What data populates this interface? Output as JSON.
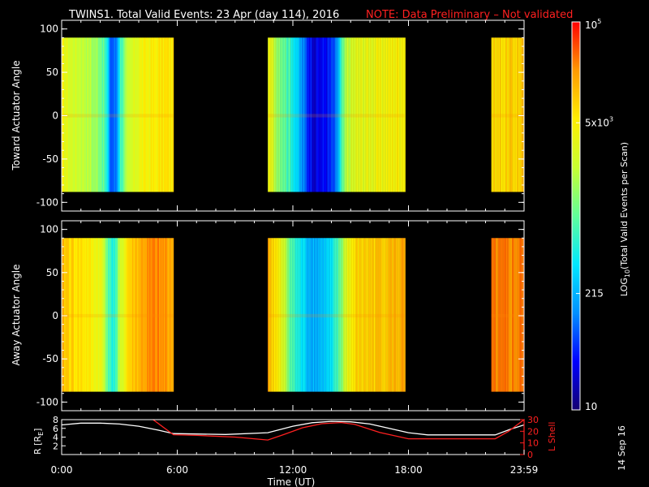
{
  "header": {
    "title": "TWINS1. Total Valid Events: 23 Apr (day 114), 2016",
    "note": "NOTE: Data Preliminary – Not validated",
    "date_stamp": "14 Sep 16",
    "title_color": "#ffffff",
    "note_color": "#ff2020"
  },
  "chart_data": [
    {
      "type": "heatmap",
      "panel": "top",
      "ylabel": "Toward Actuator Angle",
      "ylim": [
        -110,
        110
      ],
      "yticks": [
        "100",
        "50",
        "0",
        "-50",
        "-100"
      ],
      "y_data_range": [
        -88,
        90
      ],
      "xlim_hours": [
        0,
        24
      ],
      "segments": [
        {
          "start_h": 0.0,
          "end_h": 5.8,
          "profile": [
            [
              0.0,
              0.72
            ],
            [
              0.4,
              0.66
            ],
            [
              0.9,
              0.64
            ],
            [
              1.3,
              0.62
            ],
            [
              1.6,
              0.58
            ],
            [
              2.0,
              0.55
            ],
            [
              2.3,
              0.42
            ],
            [
              2.5,
              0.2
            ],
            [
              2.8,
              0.22
            ],
            [
              3.0,
              0.45
            ],
            [
              3.4,
              0.6
            ],
            [
              3.8,
              0.68
            ],
            [
              4.2,
              0.72
            ],
            [
              4.8,
              0.74
            ],
            [
              5.3,
              0.76
            ],
            [
              5.8,
              0.75
            ]
          ]
        },
        {
          "start_h": 10.7,
          "end_h": 17.8,
          "profile": [
            [
              10.7,
              0.72
            ],
            [
              11.1,
              0.6
            ],
            [
              11.6,
              0.5
            ],
            [
              12.0,
              0.42
            ],
            [
              12.3,
              0.3
            ],
            [
              12.7,
              0.18
            ],
            [
              13.1,
              0.1
            ],
            [
              13.5,
              0.12
            ],
            [
              13.9,
              0.15
            ],
            [
              14.2,
              0.2
            ],
            [
              14.5,
              0.45
            ],
            [
              14.8,
              0.62
            ],
            [
              15.3,
              0.68
            ],
            [
              16.0,
              0.7
            ],
            [
              16.8,
              0.72
            ],
            [
              17.8,
              0.75
            ]
          ]
        },
        {
          "start_h": 22.3,
          "end_h": 24.0,
          "profile": [
            [
              22.3,
              0.78
            ],
            [
              23.0,
              0.78
            ],
            [
              24.0,
              0.8
            ]
          ]
        }
      ]
    },
    {
      "type": "heatmap",
      "panel": "middle",
      "ylabel": "Away Actuator Angle",
      "ylim": [
        -110,
        110
      ],
      "yticks": [
        "100",
        "50",
        "0",
        "-50",
        "-100"
      ],
      "y_data_range": [
        -88,
        90
      ],
      "xlim_hours": [
        0,
        24
      ],
      "segments": [
        {
          "start_h": 0.0,
          "end_h": 5.8,
          "profile": [
            [
              0.0,
              0.82
            ],
            [
              0.6,
              0.78
            ],
            [
              1.2,
              0.76
            ],
            [
              1.6,
              0.72
            ],
            [
              2.0,
              0.7
            ],
            [
              2.3,
              0.56
            ],
            [
              2.5,
              0.42
            ],
            [
              2.8,
              0.45
            ],
            [
              3.0,
              0.62
            ],
            [
              3.4,
              0.78
            ],
            [
              3.8,
              0.82
            ],
            [
              4.2,
              0.86
            ],
            [
              4.8,
              0.88
            ],
            [
              5.8,
              0.86
            ]
          ]
        },
        {
          "start_h": 10.7,
          "end_h": 17.8,
          "profile": [
            [
              10.7,
              0.84
            ],
            [
              11.1,
              0.76
            ],
            [
              11.6,
              0.6
            ],
            [
              12.0,
              0.45
            ],
            [
              12.4,
              0.38
            ],
            [
              12.8,
              0.32
            ],
            [
              13.2,
              0.3
            ],
            [
              13.6,
              0.33
            ],
            [
              14.0,
              0.36
            ],
            [
              14.4,
              0.5
            ],
            [
              14.8,
              0.7
            ],
            [
              15.3,
              0.78
            ],
            [
              16.0,
              0.8
            ],
            [
              17.0,
              0.82
            ],
            [
              17.8,
              0.84
            ]
          ]
        },
        {
          "start_h": 22.3,
          "end_h": 24.0,
          "profile": [
            [
              22.3,
              0.88
            ],
            [
              23.0,
              0.88
            ],
            [
              24.0,
              0.9
            ]
          ]
        }
      ]
    },
    {
      "type": "line",
      "panel": "bottom",
      "xlabel": "Time (UT)",
      "x_ticks": [
        "0:00",
        "6:00",
        "12:00",
        "18:00",
        "23:59"
      ],
      "x_tick_hours": [
        0,
        6,
        12,
        18,
        24
      ],
      "ylabel_left": "R [R",
      "ylabel_left_sub": "E",
      "ylabel_left_close": "]",
      "ylabel_right": "L Shell",
      "ylim_left": [
        0,
        8
      ],
      "yticks_left": [
        "8",
        "6",
        "4",
        "2"
      ],
      "ylim_right": [
        0,
        30
      ],
      "yticks_right": [
        "30",
        "20",
        "10",
        "0"
      ],
      "series": [
        {
          "name": "R",
          "color": "#ffffff",
          "axis": "left",
          "x": [
            0,
            1,
            2,
            3,
            4,
            5,
            5.8,
            7,
            8.5,
            10.7,
            12,
            13,
            14,
            15,
            16,
            17,
            18,
            19,
            21,
            22.5,
            23.3,
            24
          ],
          "y": [
            6.8,
            7.2,
            7.2,
            7.0,
            6.5,
            5.6,
            4.8,
            4.7,
            4.6,
            5.0,
            6.5,
            7.3,
            7.6,
            7.5,
            7.0,
            6.0,
            5.0,
            4.5,
            4.5,
            4.5,
            5.8,
            6.8
          ]
        },
        {
          "name": "L Shell",
          "color": "#ff2020",
          "axis": "right",
          "x": [
            0,
            0.5,
            1,
            4.5,
            5.8,
            7,
            9,
            10.7,
            11.5,
            12.5,
            13.5,
            14.5,
            15.2,
            16.5,
            18,
            20,
            22.5,
            23.2,
            24
          ],
          "y": [
            30,
            33,
            33,
            33,
            17,
            16.5,
            15,
            12.5,
            17,
            23,
            26.5,
            27.5,
            26,
            19,
            13.5,
            13.5,
            13.5,
            20,
            30
          ]
        }
      ]
    }
  ],
  "colorbar": {
    "label": "LOG",
    "label_sub": "10",
    "label_rest": "(Total Valid Events per Scan)",
    "tick_top": "10",
    "tick_top_sup": "5",
    "tick_5k": "5x10",
    "tick_5k_sup": "3",
    "tick_215": "215",
    "tick_bottom": "10",
    "tick_fractions": [
      1.0,
      0.74,
      0.3,
      0.0
    ],
    "colormap": [
      "#140070",
      "#0000ff",
      "#0090ff",
      "#00e8ff",
      "#60ff9a",
      "#c8ff30",
      "#ffee00",
      "#ff9a00",
      "#ff0000"
    ]
  }
}
